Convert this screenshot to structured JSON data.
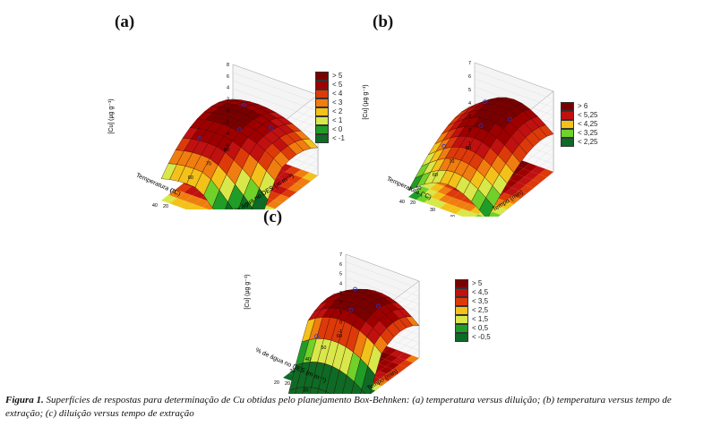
{
  "figure": {
    "caption_label": "Figura 1.",
    "caption_text": " Superfícies de respostas para determinação de Cu obtidas pelo planejamento Box-Behnken: (a) temperatura versus diluição; (b) temperatura versus tempo de extração; (c) diluição versus tempo de extração"
  },
  "chart_data": [
    {
      "panel": "(a)",
      "type": "surface3d",
      "zlabel": "[Cu] (µg g⁻¹)",
      "xlabel": "Temperatura (°C)",
      "ylabel": "% de água no DES (m m⁻¹)",
      "zticks": [
        "8",
        "6",
        "4",
        "2",
        "0",
        "-2",
        "-4",
        "-6"
      ],
      "xticks": [
        "80",
        "70",
        "60",
        "50",
        "40"
      ],
      "yticks": [
        "20",
        "30",
        "40",
        "50",
        "60"
      ],
      "legend": [
        "> 5",
        "< 5",
        "< 4",
        "< 3",
        "< 2",
        "< 1",
        "< 0",
        "< -1"
      ]
    },
    {
      "panel": "(b)",
      "type": "surface3d",
      "zlabel": "[Cu] (µg g⁻¹)",
      "xlabel": "Temperatura (°C)",
      "ylabel": "Tempo (min)",
      "zticks": [
        "7",
        "6",
        "5",
        "4",
        "3",
        "2",
        "1"
      ],
      "xticks": [
        "80",
        "70",
        "60",
        "50",
        "40"
      ],
      "yticks": [
        "20",
        "30",
        "40",
        "50",
        "60"
      ],
      "legend": [
        "> 6",
        "< 5,25",
        "< 4,25",
        "< 3,25",
        "< 2,25"
      ]
    },
    {
      "panel": "(c)",
      "type": "surface3d",
      "zlabel": "[Cu] (µg g⁻¹)",
      "xlabel": "% de água no DES (m m⁻¹)",
      "ylabel": "Tempo (min)",
      "zticks": [
        "7",
        "6",
        "5",
        "4",
        "3",
        "2",
        "1",
        "0",
        "-1"
      ],
      "xticks": [
        "60",
        "50",
        "40",
        "30",
        "20"
      ],
      "yticks": [
        "20",
        "30",
        "40",
        "50",
        "60"
      ],
      "legend": [
        "> 5",
        "< 4,5",
        "< 3,5",
        "< 2,5",
        "< 1,5",
        "< 0,5",
        "< -0,5"
      ]
    }
  ],
  "colors": {
    "scale": [
      "#7a0000",
      "#9e0000",
      "#c01010",
      "#dd3a0a",
      "#f07d10",
      "#f2c21a",
      "#d8e84a",
      "#6fd12a",
      "#1f9d27",
      "#0d6b25"
    ]
  }
}
